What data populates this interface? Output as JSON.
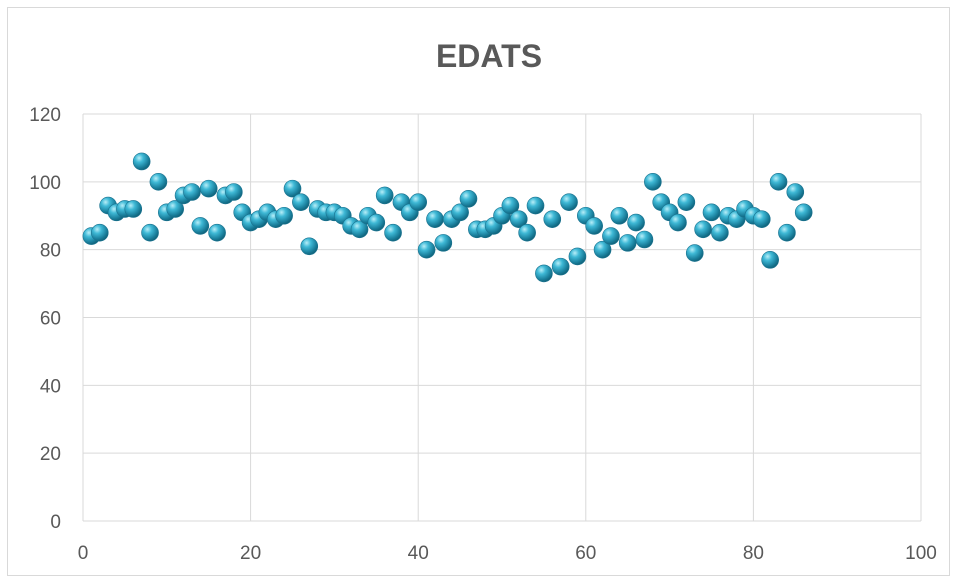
{
  "chart_data": {
    "type": "scatter",
    "title": "EDATS",
    "xlabel": "",
    "ylabel": "",
    "xlim": [
      0,
      100
    ],
    "ylim": [
      0,
      120
    ],
    "x_ticks": [
      0,
      20,
      40,
      60,
      80,
      100
    ],
    "y_ticks": [
      0,
      20,
      40,
      60,
      80,
      100,
      120
    ],
    "grid": true,
    "legend": "none",
    "marker_color": "#2aa7c4",
    "series": [
      {
        "x": [
          1,
          2,
          3,
          4,
          5,
          6,
          7,
          8,
          9,
          10,
          11,
          12,
          13,
          14,
          15,
          16,
          17,
          18,
          19,
          20,
          21,
          22,
          23,
          24,
          25,
          26,
          27,
          28,
          29,
          30,
          31,
          32,
          33,
          34,
          35,
          36,
          37,
          38,
          39,
          40,
          41,
          42,
          43,
          44,
          45,
          46,
          47,
          48,
          49,
          50,
          51,
          52,
          53,
          54,
          55,
          56,
          57,
          58,
          59,
          60,
          61,
          62,
          63,
          64,
          65,
          66,
          67,
          68,
          69,
          70,
          71,
          72,
          73,
          74,
          75,
          76,
          77,
          78,
          79,
          80,
          81,
          82,
          83,
          84,
          85,
          86
        ],
        "y": [
          84,
          85,
          93,
          91,
          92,
          92,
          106,
          85,
          100,
          91,
          92,
          96,
          97,
          87,
          98,
          85,
          96,
          97,
          91,
          88,
          89,
          91,
          89,
          90,
          98,
          94,
          81,
          92,
          91,
          91,
          90,
          87,
          86,
          90,
          88,
          96,
          85,
          94,
          91,
          94,
          80,
          89,
          82,
          89,
          91,
          95,
          86,
          86,
          87,
          90,
          93,
          89,
          85,
          93,
          73,
          89,
          75,
          94,
          78,
          90,
          87,
          80,
          84,
          90,
          82,
          88,
          83,
          100,
          94,
          91,
          88,
          94,
          79,
          86,
          91,
          85,
          90,
          89,
          92,
          90,
          89,
          77,
          100,
          85,
          97,
          91
        ]
      }
    ]
  }
}
